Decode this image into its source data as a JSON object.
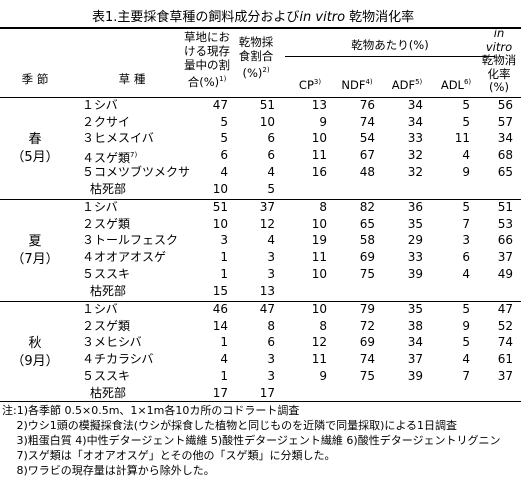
{
  "title": {
    "prefix": "表1.主要採食草種の飼料成分および",
    "italic": "in vitro",
    "suffix": "乾物消化率"
  },
  "headers": {
    "season": "季 節",
    "species": "草 種",
    "ratio": [
      "草地にお",
      "ける現存",
      "量中の割",
      "合(%)"
    ],
    "ratio_sup": "1)",
    "intake": [
      "乾物採",
      "食割合",
      "(%)"
    ],
    "intake_sup": "2)",
    "per_dm": "乾物あたり(%)",
    "cp": "CP",
    "cp_sup": "3)",
    "ndf": "NDF",
    "ndf_sup": "4)",
    "adf": "ADF",
    "adf_sup": "5)",
    "adl": "ADL",
    "adl_sup": "6)",
    "ivd": [
      "in",
      "vitro",
      "乾物消",
      "化率",
      "(%)"
    ]
  },
  "groups": [
    {
      "season": [
        "春",
        "（5月）"
      ],
      "rows": [
        {
          "name": "１シバ",
          "ratio": "47",
          "intake": "51",
          "cp": "13",
          "ndf": "76",
          "adf": "34",
          "adl": "5",
          "ivd": "56"
        },
        {
          "name": "２クサイ",
          "ratio": "5",
          "intake": "10",
          "cp": "9",
          "ndf": "74",
          "adf": "34",
          "adl": "5",
          "ivd": "57"
        },
        {
          "name": "３ヒメスイバ",
          "ratio": "5",
          "intake": "6",
          "cp": "10",
          "ndf": "54",
          "adf": "33",
          "adl": "11",
          "ivd": "34"
        },
        {
          "name": "４スゲ類",
          "name_sup": "7)",
          "ratio": "6",
          "intake": "6",
          "cp": "11",
          "ndf": "67",
          "adf": "32",
          "adl": "4",
          "ivd": "68"
        },
        {
          "name": "５コメツブツメクサ",
          "ratio": "4",
          "intake": "4",
          "cp": "16",
          "ndf": "48",
          "adf": "32",
          "adl": "9",
          "ivd": "65"
        },
        {
          "name": "枯死部",
          "ratio": "10",
          "intake": "5",
          "cp": "",
          "ndf": "",
          "adf": "",
          "adl": "",
          "ivd": ""
        }
      ]
    },
    {
      "season": [
        "夏",
        "（7月）"
      ],
      "rows": [
        {
          "name": "１シバ",
          "ratio": "51",
          "intake": "37",
          "cp": "8",
          "ndf": "82",
          "adf": "36",
          "adl": "5",
          "ivd": "51"
        },
        {
          "name": "２スゲ類",
          "ratio": "10",
          "intake": "12",
          "cp": "10",
          "ndf": "65",
          "adf": "35",
          "adl": "7",
          "ivd": "53"
        },
        {
          "name": "３トールフェスク",
          "ratio": "3",
          "intake": "4",
          "cp": "19",
          "ndf": "58",
          "adf": "29",
          "adl": "3",
          "ivd": "66"
        },
        {
          "name": "４オオアオスゲ",
          "ratio": "1",
          "intake": "3",
          "cp": "11",
          "ndf": "69",
          "adf": "33",
          "adl": "6",
          "ivd": "37"
        },
        {
          "name": "５ススキ",
          "ratio": "1",
          "intake": "3",
          "cp": "10",
          "ndf": "75",
          "adf": "39",
          "adl": "4",
          "ivd": "49"
        },
        {
          "name": "枯死部",
          "ratio": "15",
          "intake": "13",
          "cp": "",
          "ndf": "",
          "adf": "",
          "adl": "",
          "ivd": ""
        }
      ]
    },
    {
      "season": [
        "秋",
        "（9月）"
      ],
      "rows": [
        {
          "name": "１シバ",
          "ratio": "46",
          "intake": "47",
          "cp": "10",
          "ndf": "79",
          "adf": "35",
          "adl": "5",
          "ivd": "47"
        },
        {
          "name": "２スゲ類",
          "ratio": "14",
          "intake": "8",
          "cp": "8",
          "ndf": "72",
          "adf": "38",
          "adl": "9",
          "ivd": "52"
        },
        {
          "name": "３メヒシバ",
          "ratio": "1",
          "intake": "6",
          "cp": "12",
          "ndf": "69",
          "adf": "34",
          "adl": "5",
          "ivd": "74"
        },
        {
          "name": "４チカラシバ",
          "ratio": "4",
          "intake": "3",
          "cp": "11",
          "ndf": "74",
          "adf": "37",
          "adl": "4",
          "ivd": "61"
        },
        {
          "name": "５ススキ",
          "ratio": "1",
          "intake": "3",
          "cp": "9",
          "ndf": "75",
          "adf": "39",
          "adl": "7",
          "ivd": "37"
        },
        {
          "name": "枯死部",
          "ratio": "17",
          "intake": "17",
          "cp": "",
          "ndf": "",
          "adf": "",
          "adl": "",
          "ivd": ""
        }
      ]
    }
  ],
  "notes": [
    "注:1)各季節 0.5×0.5m、1×1m各10カ所のコドラート調査",
    "　 2)ウシ1頭の模擬採食法(ウシが採食した植物と同じものを近隣で同量採取)による1日調査",
    "　 3)粗蛋白質  4)中性デタージェント繊維  5)酸性デタージェント繊維  6)酸性デタージェントリグニン",
    "　 7)スゲ類は「オオアオスゲ」とその他の「スゲ類」に分類した。",
    "　 8)ワラビの現存量は計算から除外した。"
  ]
}
